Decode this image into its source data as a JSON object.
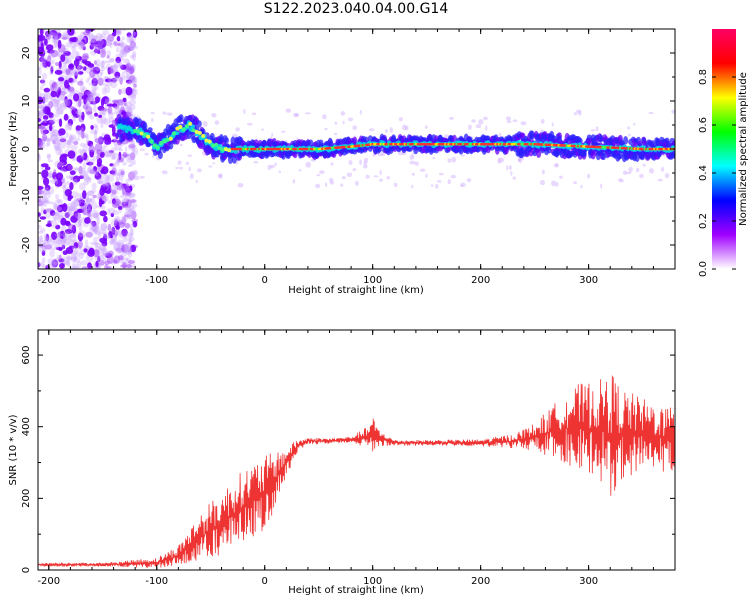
{
  "title": "S122.2023.040.04.00.G14",
  "chart_data": [
    {
      "type": "heatmap",
      "xlabel": "Height of straight line (km)",
      "ylabel": "Frequency (Hz)",
      "xlim": [
        -210,
        380
      ],
      "ylim": [
        -25,
        25
      ],
      "xticks": [
        -200,
        -100,
        0,
        100,
        200,
        300
      ],
      "yticks": [
        -20,
        -10,
        0,
        10,
        20
      ],
      "colorbar": {
        "label": "Normalized spectral amplitude",
        "range": [
          0,
          1
        ],
        "ticks": [
          "0.0",
          "0.2",
          "0.4",
          "0.6",
          "0.8"
        ],
        "colors": [
          "#ffffff",
          "#a000ff",
          "#0000ff",
          "#00ffff",
          "#00ff00",
          "#ffff00",
          "#ff0000",
          "#ff0066"
        ]
      },
      "ridge": {
        "x": [
          -135,
          -120,
          -110,
          -100,
          -90,
          -80,
          -70,
          -60,
          -50,
          -40,
          -30,
          -20,
          0,
          50,
          80,
          100,
          150,
          200,
          250,
          300,
          350,
          380
        ],
        "y": [
          4.5,
          4,
          3,
          0,
          2,
          4,
          5,
          3,
          1,
          0,
          0,
          0,
          0,
          0,
          0.5,
          1,
          1,
          1,
          1,
          0.5,
          0,
          0
        ]
      },
      "noise_region": {
        "x": [
          -210,
          -135
        ],
        "y": [
          -25,
          25
        ]
      }
    },
    {
      "type": "line",
      "xlabel": "Height of straight line (km)",
      "ylabel": "SNR (10 * v/v)",
      "xlim": [
        -210,
        380
      ],
      "ylim": [
        0,
        670
      ],
      "xticks": [
        -200,
        -100,
        0,
        100,
        200,
        300
      ],
      "yticks": [
        0,
        200,
        400,
        600
      ],
      "color": "#ee3333",
      "envelope": {
        "x": [
          -210,
          -150,
          -100,
          -80,
          -60,
          -40,
          -20,
          0,
          20,
          30,
          40,
          60,
          80,
          95,
          100,
          105,
          120,
          150,
          200,
          230,
          250,
          270,
          290,
          310,
          320,
          330,
          350,
          380
        ],
        "mean": [
          15,
          15,
          20,
          40,
          90,
          130,
          180,
          210,
          300,
          345,
          360,
          360,
          365,
          370,
          380,
          370,
          355,
          355,
          355,
          360,
          370,
          390,
          400,
          390,
          380,
          380,
          380,
          360
        ],
        "amp": [
          5,
          5,
          15,
          30,
          70,
          90,
          100,
          110,
          40,
          20,
          10,
          8,
          8,
          30,
          50,
          25,
          8,
          8,
          10,
          20,
          40,
          80,
          120,
          140,
          180,
          130,
          100,
          90
        ]
      }
    }
  ]
}
